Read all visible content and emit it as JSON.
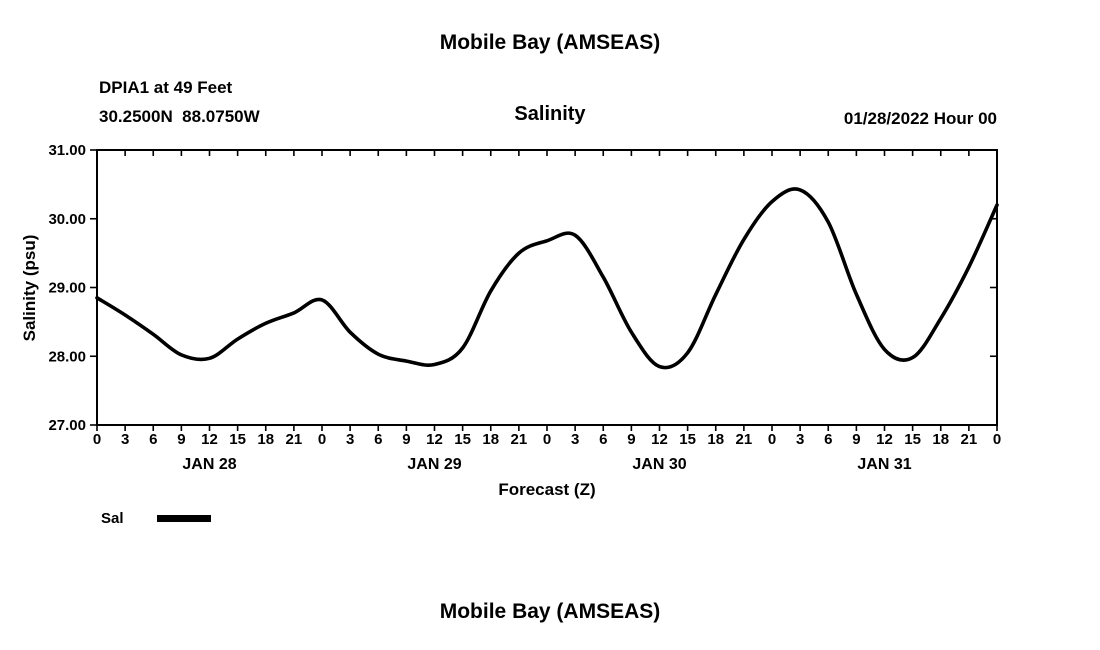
{
  "page": {
    "title_top": "Mobile Bay (AMSEAS)",
    "title_bottom": "Mobile Bay (AMSEAS)"
  },
  "header": {
    "station": "DPIA1 at 49 Feet",
    "coordinates": "30.2500N  88.0750W",
    "chart_title": "Salinity",
    "run_datetime": "01/28/2022 Hour 00"
  },
  "chart_data": {
    "type": "line",
    "title": "Salinity",
    "xlabel": "Forecast (Z)",
    "ylabel": "Salinity (psu)",
    "ylim": [
      27.0,
      31.0
    ],
    "xlim_hours": [
      0,
      96
    ],
    "y_ticks": [
      "27.00",
      "28.00",
      "29.00",
      "30.00",
      "31.00"
    ],
    "x_hour_tick_step": 3,
    "hour_labels_per_day": [
      "0",
      "3",
      "6",
      "9",
      "12",
      "15",
      "18",
      "21"
    ],
    "day_labels": [
      "JAN 28",
      "JAN 29",
      "JAN 30",
      "JAN 31"
    ],
    "grid": false,
    "legend_position": "bottom-left",
    "line_color": "#000000",
    "line_width": 3.6,
    "legend": {
      "label": "Sal",
      "color": "#000000"
    },
    "series": [
      {
        "name": "Sal",
        "x_hours": [
          0,
          3,
          6,
          9,
          12,
          15,
          18,
          21,
          24,
          27,
          30,
          33,
          36,
          39,
          42,
          45,
          48,
          51,
          54,
          57,
          60,
          63,
          66,
          69,
          72,
          75,
          78,
          81,
          84,
          87,
          90,
          93,
          96
        ],
        "values": [
          28.85,
          28.6,
          28.32,
          28.02,
          27.97,
          28.25,
          28.48,
          28.63,
          28.82,
          28.35,
          28.03,
          27.93,
          27.88,
          28.12,
          28.95,
          29.5,
          29.68,
          29.76,
          29.15,
          28.35,
          27.85,
          28.05,
          28.9,
          29.7,
          30.25,
          30.42,
          29.95,
          28.9,
          28.1,
          27.98,
          28.55,
          29.3,
          30.2
        ]
      }
    ]
  }
}
